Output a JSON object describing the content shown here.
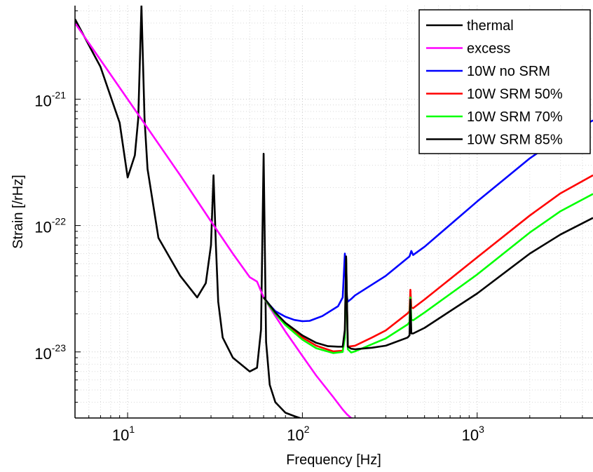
{
  "chart_data": {
    "type": "line",
    "xlabel": "Frequency [Hz]",
    "ylabel": "Strain [/rHz]",
    "xscale": "log",
    "yscale": "log",
    "xlim": [
      5,
      4600
    ],
    "ylim": [
      3e-24,
      5.5e-21
    ],
    "grid": true,
    "legend_position": "top-right",
    "x_ticks": [
      {
        "value": 10,
        "base": "10",
        "exp": "1"
      },
      {
        "value": 100,
        "base": "10",
        "exp": "2"
      },
      {
        "value": 1000,
        "base": "10",
        "exp": "3"
      }
    ],
    "y_ticks": [
      {
        "value": 1e-23,
        "base": "10",
        "exp": "-23"
      },
      {
        "value": 1e-22,
        "base": "10",
        "exp": "-22"
      },
      {
        "value": 1e-21,
        "base": "10",
        "exp": "-21"
      }
    ],
    "series": [
      {
        "name": "thermal",
        "color": "#000000",
        "x": [
          5,
          7,
          9,
          10,
          11,
          11.5,
          12,
          12.5,
          13,
          15,
          20,
          25,
          28,
          30,
          31,
          32,
          33,
          35,
          40,
          50,
          55,
          58,
          60,
          62,
          65,
          70,
          80,
          90,
          100
        ],
        "y": [
          4.3e-21,
          1.8e-21,
          6.5e-22,
          2.4e-22,
          3.6e-22,
          7e-22,
          5.5e-21,
          7e-22,
          2.8e-22,
          8e-23,
          4e-23,
          2.7e-23,
          3.5e-23,
          7e-23,
          2.5e-22,
          7e-23,
          2.5e-23,
          1.3e-23,
          9e-24,
          7e-24,
          7.5e-24,
          1.5e-23,
          3.7e-22,
          1.2e-23,
          5.5e-24,
          4e-24,
          3.3e-24,
          3.1e-24,
          2.95e-24
        ]
      },
      {
        "name": "excess",
        "color": "#ff00ff",
        "x": [
          5,
          10,
          20,
          30,
          40,
          50,
          55,
          60,
          70,
          80,
          100,
          120,
          150,
          170,
          180,
          190,
          200
        ],
        "y": [
          4e-21,
          1e-21,
          2.5e-22,
          1.08e-22,
          6e-23,
          3.9e-23,
          3.6e-23,
          2.7e-23,
          1.92e-23,
          1.45e-23,
          9.3e-24,
          6.5e-24,
          4.4e-24,
          3.5e-24,
          3.2e-24,
          3e-24,
          2.95e-24
        ]
      },
      {
        "name": "10W no SRM",
        "color": "#0000ff",
        "x": [
          60,
          65,
          70,
          80,
          90,
          100,
          110,
          130,
          160,
          170,
          175,
          178,
          182,
          190,
          200,
          300,
          410,
          420,
          430,
          500,
          1000,
          2000,
          3000,
          4600
        ],
        "y": [
          2.7e-23,
          2.35e-23,
          2.1e-23,
          1.9e-23,
          1.79e-23,
          1.75e-23,
          1.76e-23,
          1.92e-23,
          2.3e-23,
          2.7e-23,
          6e-23,
          3e-23,
          2.5e-23,
          2.62e-23,
          2.8e-23,
          4e-23,
          5.7e-23,
          6.3e-23,
          5.85e-23,
          6.8e-23,
          1.55e-22,
          3.4e-22,
          5e-22,
          6.8e-22
        ]
      },
      {
        "name": "10W SRM 50%",
        "color": "#ff0000",
        "x": [
          60,
          65,
          70,
          80,
          100,
          120,
          150,
          170,
          175,
          178,
          182,
          200,
          250,
          300,
          400,
          410,
          415,
          420,
          430,
          500,
          1000,
          2000,
          3000,
          4600
        ],
        "y": [
          2.7e-23,
          2.3e-23,
          2e-23,
          1.65e-23,
          1.3e-23,
          1.12e-23,
          1.01e-23,
          1.02e-23,
          1.4e-23,
          5.5e-23,
          1.1e-23,
          1.12e-23,
          1.3e-23,
          1.48e-23,
          2.02e-23,
          2.1e-23,
          3.1e-23,
          2.25e-23,
          2.22e-23,
          2.6e-23,
          5.6e-23,
          1.2e-22,
          1.8e-22,
          2.5e-22
        ]
      },
      {
        "name": "10W SRM 70%",
        "color": "#00ff00",
        "x": [
          60,
          65,
          70,
          80,
          100,
          120,
          150,
          170,
          175,
          178,
          182,
          190,
          200,
          250,
          300,
          400,
          410,
          415,
          420,
          430,
          500,
          1000,
          2000,
          3000,
          4600
        ],
        "y": [
          2.7e-23,
          2.3e-23,
          2e-23,
          1.63e-23,
          1.25e-23,
          1.07e-23,
          9.8e-24,
          1e-23,
          1.3e-23,
          5.5e-23,
          1.05e-23,
          9.9e-24,
          1.01e-23,
          1.15e-23,
          1.28e-23,
          1.65e-23,
          1.72e-23,
          2.7e-23,
          1.8e-23,
          1.78e-23,
          2.05e-23,
          4.1e-23,
          8.8e-23,
          1.3e-22,
          1.78e-22
        ]
      },
      {
        "name": "10W SRM 85%",
        "color": "#000000",
        "x": [
          60,
          65,
          70,
          80,
          100,
          120,
          140,
          160,
          170,
          175,
          178,
          182,
          190,
          200,
          250,
          300,
          400,
          410,
          415,
          420,
          430,
          500,
          1000,
          2000,
          3000,
          4600
        ],
        "y": [
          2.7e-23,
          2.35e-23,
          2.05e-23,
          1.7e-23,
          1.35e-23,
          1.18e-23,
          1.11e-23,
          1.1e-23,
          1.1e-23,
          1.5e-23,
          5.7e-23,
          1.1e-23,
          1.06e-23,
          1.05e-23,
          1.08e-23,
          1.12e-23,
          1.3e-23,
          1.35e-23,
          2.6e-23,
          1.4e-23,
          1.4e-23,
          1.55e-23,
          2.9e-23,
          6e-23,
          8.5e-23,
          1.15e-22
        ]
      }
    ]
  }
}
